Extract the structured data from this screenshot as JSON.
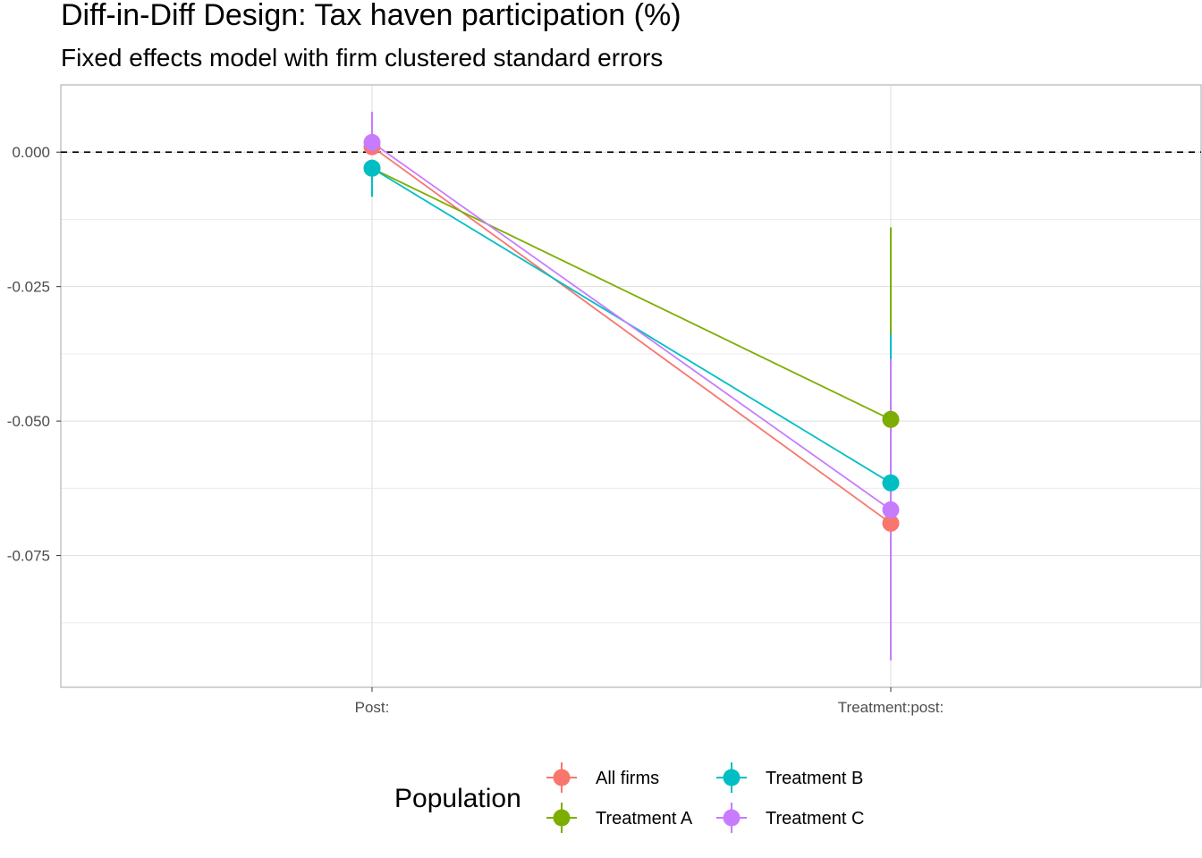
{
  "chart_data": {
    "type": "scatter",
    "title": "Diff-in-Diff Design: Tax haven participation (%)",
    "subtitle": "Fixed effects model with firm clustered standard errors",
    "xlabel": "",
    "ylabel": "",
    "categories": [
      "Post:",
      "Treatment:post:"
    ],
    "yticks": [
      "0.000",
      "-0.025",
      "-0.050",
      "-0.075"
    ],
    "ytick_values": [
      0.0,
      -0.025,
      -0.05,
      -0.075
    ],
    "ylim": [
      -0.0995,
      0.0125
    ],
    "reference_line": 0.0,
    "grid": true,
    "legend": {
      "title": "Population",
      "position": "bottom"
    },
    "series": [
      {
        "name": "All firms",
        "color": "#F8766D",
        "values": [
          0.001,
          -0.069
        ],
        "ci_low": [
          0.0005,
          -0.0695
        ],
        "ci_high": [
          0.0015,
          -0.0685
        ]
      },
      {
        "name": "Treatment A",
        "color": "#7CAE00",
        "values": [
          -0.003,
          -0.0497
        ],
        "ci_low": [
          -0.0035,
          -0.0502
        ],
        "ci_high": [
          -0.0025,
          -0.014
        ]
      },
      {
        "name": "Treatment B",
        "color": "#00BFC4",
        "values": [
          -0.003,
          -0.0615
        ],
        "ci_low": [
          -0.0083,
          -0.062
        ],
        "ci_high": [
          -0.0025,
          -0.0338
        ]
      },
      {
        "name": "Treatment C",
        "color": "#C77CFF",
        "values": [
          0.0018,
          -0.0665
        ],
        "ci_low": [
          0.0013,
          -0.0945
        ],
        "ci_high": [
          0.0075,
          -0.0385
        ]
      }
    ]
  }
}
